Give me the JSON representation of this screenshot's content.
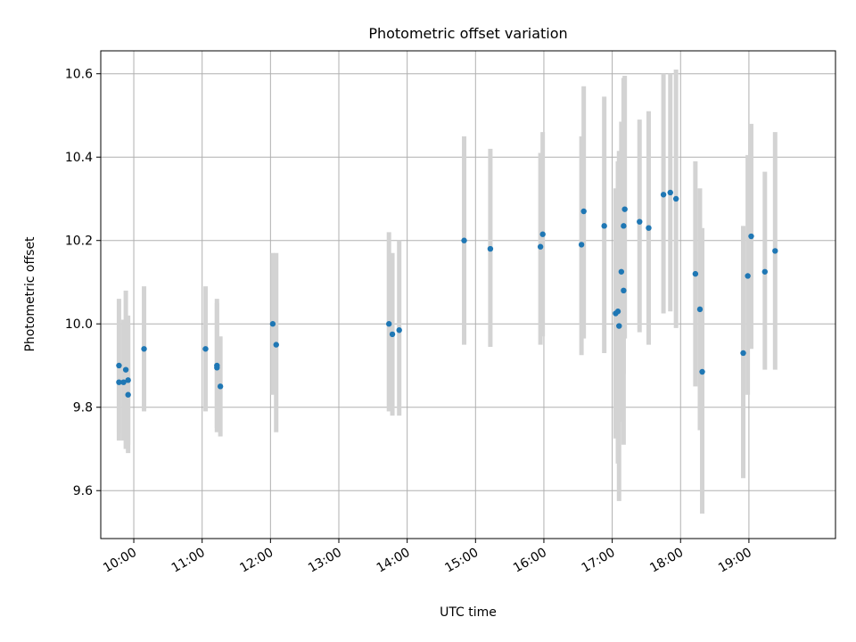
{
  "chart_data": {
    "type": "scatter",
    "title": "Photometric offset variation",
    "xlabel": "UTC time",
    "ylabel": "Photometric offset",
    "xlim": [
      "09:31",
      "20:16"
    ],
    "ylim": [
      9.485,
      10.655
    ],
    "grid": true,
    "x_ticks": [
      "10:00",
      "11:00",
      "12:00",
      "13:00",
      "14:00",
      "15:00",
      "16:00",
      "17:00",
      "18:00",
      "19:00"
    ],
    "y_ticks": [
      9.6,
      9.8,
      10.0,
      10.2,
      10.4,
      10.6
    ],
    "y_tick_labels": [
      "9.6",
      "9.8",
      "10.0",
      "10.2",
      "10.4",
      "10.6"
    ],
    "marker_color": "#1f77b4",
    "errorbar_color": "#d3d3d3",
    "points": [
      {
        "x": "09:47",
        "y": 9.86,
        "yerr_low": 9.72,
        "yerr_high": 10.06
      },
      {
        "x": "09:47",
        "y": 9.9,
        "yerr_low": 9.74,
        "yerr_high": 10.0
      },
      {
        "x": "09:51",
        "y": 9.86,
        "yerr_low": 9.72,
        "yerr_high": 10.01
      },
      {
        "x": "09:53",
        "y": 9.89,
        "yerr_low": 9.7,
        "yerr_high": 10.08
      },
      {
        "x": "09:55",
        "y": 9.83,
        "yerr_low": 9.69,
        "yerr_high": 10.02
      },
      {
        "x": "09:55",
        "y": 9.865,
        "yerr_low": 9.71,
        "yerr_high": 10.0
      },
      {
        "x": "10:09",
        "y": 9.94,
        "yerr_low": 9.79,
        "yerr_high": 10.09
      },
      {
        "x": "11:03",
        "y": 9.94,
        "yerr_low": 9.79,
        "yerr_high": 10.09
      },
      {
        "x": "11:13",
        "y": 9.9,
        "yerr_low": 9.74,
        "yerr_high": 10.06
      },
      {
        "x": "11:13",
        "y": 9.895,
        "yerr_low": 9.75,
        "yerr_high": 10.05
      },
      {
        "x": "11:16",
        "y": 9.85,
        "yerr_low": 9.73,
        "yerr_high": 9.97
      },
      {
        "x": "12:02",
        "y": 10.0,
        "yerr_low": 9.83,
        "yerr_high": 10.17
      },
      {
        "x": "12:05",
        "y": 9.95,
        "yerr_low": 9.74,
        "yerr_high": 10.17
      },
      {
        "x": "13:44",
        "y": 10.0,
        "yerr_low": 9.79,
        "yerr_high": 10.22
      },
      {
        "x": "13:47",
        "y": 9.975,
        "yerr_low": 9.78,
        "yerr_high": 10.17
      },
      {
        "x": "13:53",
        "y": 9.985,
        "yerr_low": 9.78,
        "yerr_high": 10.2
      },
      {
        "x": "14:50",
        "y": 10.2,
        "yerr_low": 9.95,
        "yerr_high": 10.45
      },
      {
        "x": "15:13",
        "y": 10.18,
        "yerr_low": 9.945,
        "yerr_high": 10.42
      },
      {
        "x": "15:57",
        "y": 10.185,
        "yerr_low": 9.95,
        "yerr_high": 10.41
      },
      {
        "x": "15:59",
        "y": 10.215,
        "yerr_low": 9.97,
        "yerr_high": 10.46
      },
      {
        "x": "16:33",
        "y": 10.19,
        "yerr_low": 9.925,
        "yerr_high": 10.45
      },
      {
        "x": "16:35",
        "y": 10.27,
        "yerr_low": 9.965,
        "yerr_high": 10.57
      },
      {
        "x": "16:53",
        "y": 10.235,
        "yerr_low": 9.93,
        "yerr_high": 10.545
      },
      {
        "x": "17:03",
        "y": 10.025,
        "yerr_low": 9.725,
        "yerr_high": 10.325
      },
      {
        "x": "17:05",
        "y": 10.03,
        "yerr_low": 9.665,
        "yerr_high": 10.39
      },
      {
        "x": "17:06",
        "y": 9.995,
        "yerr_low": 9.575,
        "yerr_high": 10.415
      },
      {
        "x": "17:08",
        "y": 10.125,
        "yerr_low": 9.765,
        "yerr_high": 10.485
      },
      {
        "x": "17:10",
        "y": 10.08,
        "yerr_low": 9.71,
        "yerr_high": 10.45
      },
      {
        "x": "17:10",
        "y": 10.235,
        "yerr_low": 9.88,
        "yerr_high": 10.59
      },
      {
        "x": "17:11",
        "y": 10.275,
        "yerr_low": 9.965,
        "yerr_high": 10.595
      },
      {
        "x": "17:24",
        "y": 10.245,
        "yerr_low": 9.98,
        "yerr_high": 10.49
      },
      {
        "x": "17:32",
        "y": 10.23,
        "yerr_low": 9.95,
        "yerr_high": 10.51
      },
      {
        "x": "17:45",
        "y": 10.31,
        "yerr_low": 10.025,
        "yerr_high": 10.6
      },
      {
        "x": "17:51",
        "y": 10.315,
        "yerr_low": 10.03,
        "yerr_high": 10.6
      },
      {
        "x": "17:56",
        "y": 10.3,
        "yerr_low": 9.99,
        "yerr_high": 10.61
      },
      {
        "x": "18:13",
        "y": 10.12,
        "yerr_low": 9.85,
        "yerr_high": 10.39
      },
      {
        "x": "18:17",
        "y": 10.035,
        "yerr_low": 9.745,
        "yerr_high": 10.325
      },
      {
        "x": "18:19",
        "y": 9.885,
        "yerr_low": 9.545,
        "yerr_high": 10.23
      },
      {
        "x": "18:55",
        "y": 9.93,
        "yerr_low": 9.63,
        "yerr_high": 10.235
      },
      {
        "x": "18:59",
        "y": 10.115,
        "yerr_low": 9.83,
        "yerr_high": 10.405
      },
      {
        "x": "19:02",
        "y": 10.21,
        "yerr_low": 9.94,
        "yerr_high": 10.48
      },
      {
        "x": "19:14",
        "y": 10.125,
        "yerr_low": 9.89,
        "yerr_high": 10.365
      },
      {
        "x": "19:23",
        "y": 10.175,
        "yerr_low": 9.89,
        "yerr_high": 10.46
      }
    ]
  }
}
